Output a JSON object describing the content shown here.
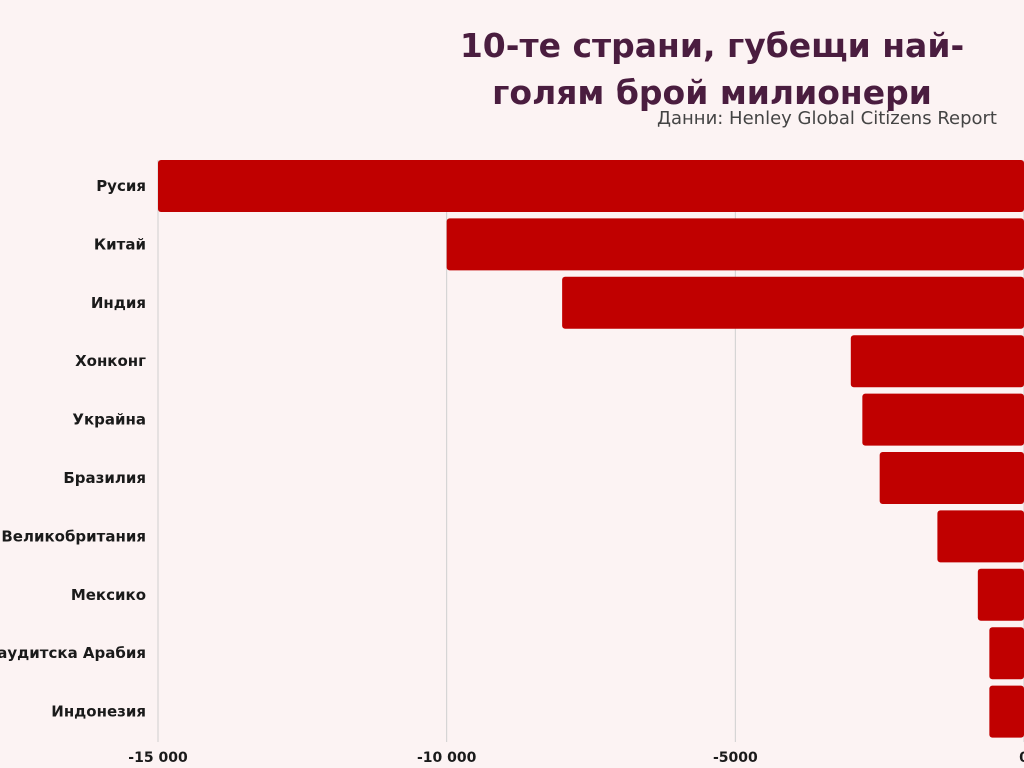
{
  "title": "10-те страни, губещи най-голям брой милионери",
  "source": "Данни: Henley Global Citizens Report",
  "colors": {
    "background": "#fcf3f3",
    "bar": "#c00000",
    "grid": "#cfcfcf",
    "title": "#4a1d3f"
  },
  "chart_data": {
    "type": "bar",
    "orientation": "horizontal",
    "title": "10-те страни, губещи най-голям брой милионери",
    "categories": [
      "Русия",
      "Китай",
      "Индия",
      "Хонконг",
      "Украйна",
      "Бразилия",
      "Великобритания",
      "Мексико",
      "Саудитска Арабия",
      "Индонезия"
    ],
    "values": [
      -15000,
      -10000,
      -8000,
      -3000,
      -2800,
      -2500,
      -1500,
      -800,
      -600,
      -600
    ],
    "xlim": [
      -15000,
      0
    ],
    "ticks": [
      -15000,
      -10000,
      -5000,
      0
    ],
    "tick_labels": [
      "-15 000",
      "-10 000",
      "-5000",
      "0"
    ],
    "grid": true
  }
}
